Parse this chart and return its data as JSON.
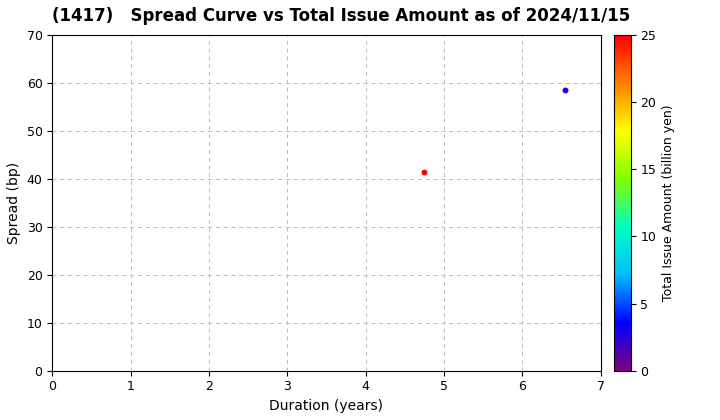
{
  "title": "(1417)   Spread Curve vs Total Issue Amount as of 2024/11/15",
  "xlabel": "Duration (years)",
  "ylabel": "Spread (bp)",
  "colorbar_label": "Total Issue Amount (billion yen)",
  "points": [
    {
      "duration": 4.75,
      "spread": 41.5,
      "amount": 25.0
    },
    {
      "duration": 6.55,
      "spread": 58.5,
      "amount": 3.0
    }
  ],
  "xlim": [
    0,
    7
  ],
  "ylim": [
    0,
    70
  ],
  "xticks": [
    0,
    1,
    2,
    3,
    4,
    5,
    6,
    7
  ],
  "yticks": [
    0,
    10,
    20,
    30,
    40,
    50,
    60,
    70
  ],
  "colorbar_min": 0,
  "colorbar_max": 25,
  "colorbar_ticks": [
    0,
    5,
    10,
    15,
    20,
    25
  ],
  "marker_size": 18,
  "background_color": "#ffffff",
  "grid_color": "#bbbbbb",
  "title_fontsize": 12,
  "axis_fontsize": 10,
  "colorbar_fontsize": 9
}
